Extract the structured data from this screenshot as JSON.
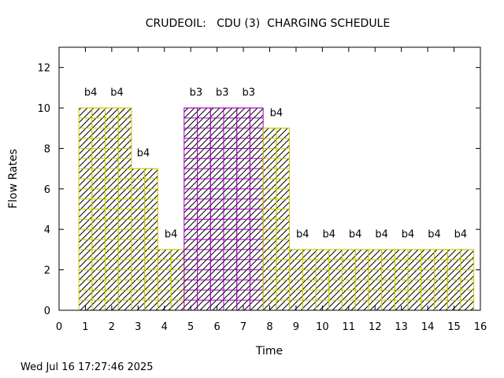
{
  "chart_data": {
    "type": "bar",
    "title": "CRUDEOIL:   CDU (3)  CHARGING SCHEDULE",
    "xlabel": "Time",
    "ylabel": "Flow Rates",
    "xlim": [
      0,
      16
    ],
    "ylim": [
      0,
      13
    ],
    "xticks": [
      0,
      1,
      2,
      3,
      4,
      5,
      6,
      7,
      8,
      9,
      10,
      11,
      12,
      13,
      14,
      15,
      16
    ],
    "yticks": [
      0,
      2,
      4,
      6,
      8,
      10,
      12
    ],
    "grid": false,
    "legend": "none",
    "colors": {
      "b4": "#c8c800",
      "b3": "#a000c0"
    },
    "bars": [
      {
        "start": 0.75,
        "end": 1.25,
        "value": 10,
        "batch": "b4"
      },
      {
        "start": 1.25,
        "end": 1.75,
        "value": 10,
        "batch": "b4"
      },
      {
        "start": 1.75,
        "end": 2.25,
        "value": 10,
        "batch": "b4"
      },
      {
        "start": 2.25,
        "end": 2.75,
        "value": 10,
        "batch": "b4"
      },
      {
        "start": 2.75,
        "end": 3.25,
        "value": 7,
        "batch": "b4"
      },
      {
        "start": 3.25,
        "end": 3.75,
        "value": 7,
        "batch": "b4"
      },
      {
        "start": 3.75,
        "end": 4.25,
        "value": 3,
        "batch": "b4"
      },
      {
        "start": 4.25,
        "end": 4.75,
        "value": 3,
        "batch": "b4"
      },
      {
        "start": 4.75,
        "end": 5.25,
        "value": 10,
        "batch": "b3"
      },
      {
        "start": 5.25,
        "end": 5.75,
        "value": 10,
        "batch": "b3"
      },
      {
        "start": 5.75,
        "end": 6.25,
        "value": 10,
        "batch": "b3"
      },
      {
        "start": 6.25,
        "end": 6.75,
        "value": 10,
        "batch": "b3"
      },
      {
        "start": 6.75,
        "end": 7.25,
        "value": 10,
        "batch": "b3"
      },
      {
        "start": 7.25,
        "end": 7.75,
        "value": 10,
        "batch": "b3"
      },
      {
        "start": 7.75,
        "end": 8.25,
        "value": 9,
        "batch": "b4"
      },
      {
        "start": 8.25,
        "end": 8.75,
        "value": 9,
        "batch": "b4"
      },
      {
        "start": 8.75,
        "end": 9.25,
        "value": 3,
        "batch": "b4"
      },
      {
        "start": 9.25,
        "end": 9.75,
        "value": 3,
        "batch": "b4"
      },
      {
        "start": 9.75,
        "end": 10.25,
        "value": 3,
        "batch": "b4"
      },
      {
        "start": 10.25,
        "end": 10.75,
        "value": 3,
        "batch": "b4"
      },
      {
        "start": 10.75,
        "end": 11.25,
        "value": 3,
        "batch": "b4"
      },
      {
        "start": 11.25,
        "end": 11.75,
        "value": 3,
        "batch": "b4"
      },
      {
        "start": 11.75,
        "end": 12.25,
        "value": 3,
        "batch": "b4"
      },
      {
        "start": 12.25,
        "end": 12.75,
        "value": 3,
        "batch": "b4"
      },
      {
        "start": 12.75,
        "end": 13.25,
        "value": 3,
        "batch": "b4"
      },
      {
        "start": 13.25,
        "end": 13.75,
        "value": 3,
        "batch": "b4"
      },
      {
        "start": 13.75,
        "end": 14.25,
        "value": 3,
        "batch": "b4"
      },
      {
        "start": 14.25,
        "end": 14.75,
        "value": 3,
        "batch": "b4"
      },
      {
        "start": 14.75,
        "end": 15.25,
        "value": 3,
        "batch": "b4"
      },
      {
        "start": 15.25,
        "end": 15.75,
        "value": 3,
        "batch": "b4"
      }
    ],
    "annotations": [
      {
        "x": 1.2,
        "y": 10.6,
        "text": "b4"
      },
      {
        "x": 2.2,
        "y": 10.6,
        "text": "b4"
      },
      {
        "x": 3.2,
        "y": 7.6,
        "text": "b4"
      },
      {
        "x": 4.25,
        "y": 3.6,
        "text": "b4"
      },
      {
        "x": 5.2,
        "y": 10.6,
        "text": "b3"
      },
      {
        "x": 6.2,
        "y": 10.6,
        "text": "b3"
      },
      {
        "x": 7.2,
        "y": 10.6,
        "text": "b3"
      },
      {
        "x": 8.25,
        "y": 9.6,
        "text": "b4"
      },
      {
        "x": 9.25,
        "y": 3.6,
        "text": "b4"
      },
      {
        "x": 10.25,
        "y": 3.6,
        "text": "b4"
      },
      {
        "x": 11.25,
        "y": 3.6,
        "text": "b4"
      },
      {
        "x": 12.25,
        "y": 3.6,
        "text": "b4"
      },
      {
        "x": 13.25,
        "y": 3.6,
        "text": "b4"
      },
      {
        "x": 14.25,
        "y": 3.6,
        "text": "b4"
      },
      {
        "x": 15.25,
        "y": 3.6,
        "text": "b4"
      }
    ]
  },
  "timestamp": "Wed Jul 16 17:27:46 2025"
}
